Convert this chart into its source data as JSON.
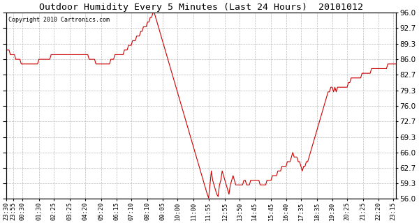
{
  "title": "Outdoor Humidity Every 5 Minutes (Last 24 Hours)  20101012",
  "copyright": "Copyright 2010 Cartronics.com",
  "line_color": "#cc0000",
  "bg_color": "#ffffff",
  "grid_color": "#bbbbbb",
  "ylim": [
    56.0,
    96.0
  ],
  "yticks": [
    56.0,
    59.3,
    62.7,
    66.0,
    69.3,
    72.7,
    76.0,
    79.3,
    82.7,
    86.0,
    89.3,
    92.7,
    96.0
  ],
  "xtick_labels": [
    "23:30",
    "00:30",
    "01:30",
    "02:25",
    "03:25",
    "04:20",
    "05:20",
    "06:15",
    "07:10",
    "08:10",
    "09:05",
    "10:00",
    "11:00",
    "11:55",
    "12:55",
    "13:50",
    "14:45",
    "15:45",
    "16:40",
    "17:35",
    "18:35",
    "19:30",
    "20:25",
    "21:25",
    "22:20",
    "23:15",
    "23:55"
  ],
  "humidity": [
    88,
    88,
    88,
    87,
    87,
    87,
    87,
    86,
    86,
    86,
    86,
    85,
    85,
    85,
    85,
    85,
    85,
    85,
    85,
    85,
    85,
    85,
    85,
    85,
    86,
    86,
    86,
    86,
    86,
    86,
    86,
    86,
    86,
    87,
    87,
    87,
    87,
    87,
    87,
    87,
    87,
    87,
    87,
    87,
    87,
    87,
    87,
    87,
    87,
    87,
    87,
    87,
    87,
    87,
    87,
    87,
    87,
    87,
    87,
    87,
    87,
    86,
    86,
    86,
    86,
    86,
    85,
    85,
    85,
    85,
    85,
    85,
    85,
    85,
    85,
    85,
    85,
    86,
    86,
    86,
    87,
    87,
    87,
    87,
    87,
    87,
    87,
    88,
    88,
    88,
    89,
    89,
    89,
    90,
    90,
    90,
    91,
    91,
    91,
    92,
    92,
    93,
    93,
    93,
    94,
    94,
    95,
    95,
    96,
    96,
    95,
    94,
    93,
    92,
    91,
    90,
    89,
    88,
    87,
    86,
    85,
    84,
    83,
    82,
    81,
    80,
    79,
    78,
    77,
    76,
    75,
    74,
    73,
    72,
    71,
    70,
    69,
    68,
    67,
    66,
    65,
    64,
    63,
    62,
    61,
    60,
    59,
    58,
    57,
    56.2,
    59,
    62,
    60,
    59,
    58,
    57,
    56.5,
    59,
    60,
    62,
    61,
    60,
    59,
    58,
    57,
    59,
    60,
    61,
    60,
    59,
    59,
    59,
    59,
    59,
    59,
    60,
    60,
    59,
    59,
    59,
    60,
    60,
    60,
    60,
    60,
    60,
    60,
    59,
    59,
    59,
    59,
    59,
    60,
    60,
    60,
    60,
    61,
    61,
    61,
    61,
    62,
    62,
    62,
    63,
    63,
    63,
    63,
    64,
    64,
    64,
    65,
    66,
    65,
    65,
    65,
    64,
    64,
    63,
    62,
    63,
    63,
    64,
    64,
    65,
    66,
    67,
    68,
    69,
    70,
    71,
    72,
    73,
    74,
    75,
    76,
    77,
    78,
    79,
    79,
    80,
    80,
    79,
    80,
    79,
    80,
    80,
    80,
    80,
    80,
    80,
    80,
    80,
    81,
    81,
    82,
    82,
    82,
    82,
    82,
    82,
    82,
    82,
    83,
    83,
    83,
    83,
    83,
    83,
    83,
    84,
    84,
    84,
    84,
    84,
    84,
    84,
    84,
    84,
    84,
    84,
    84,
    85,
    85,
    85,
    85,
    85,
    85,
    85
  ]
}
